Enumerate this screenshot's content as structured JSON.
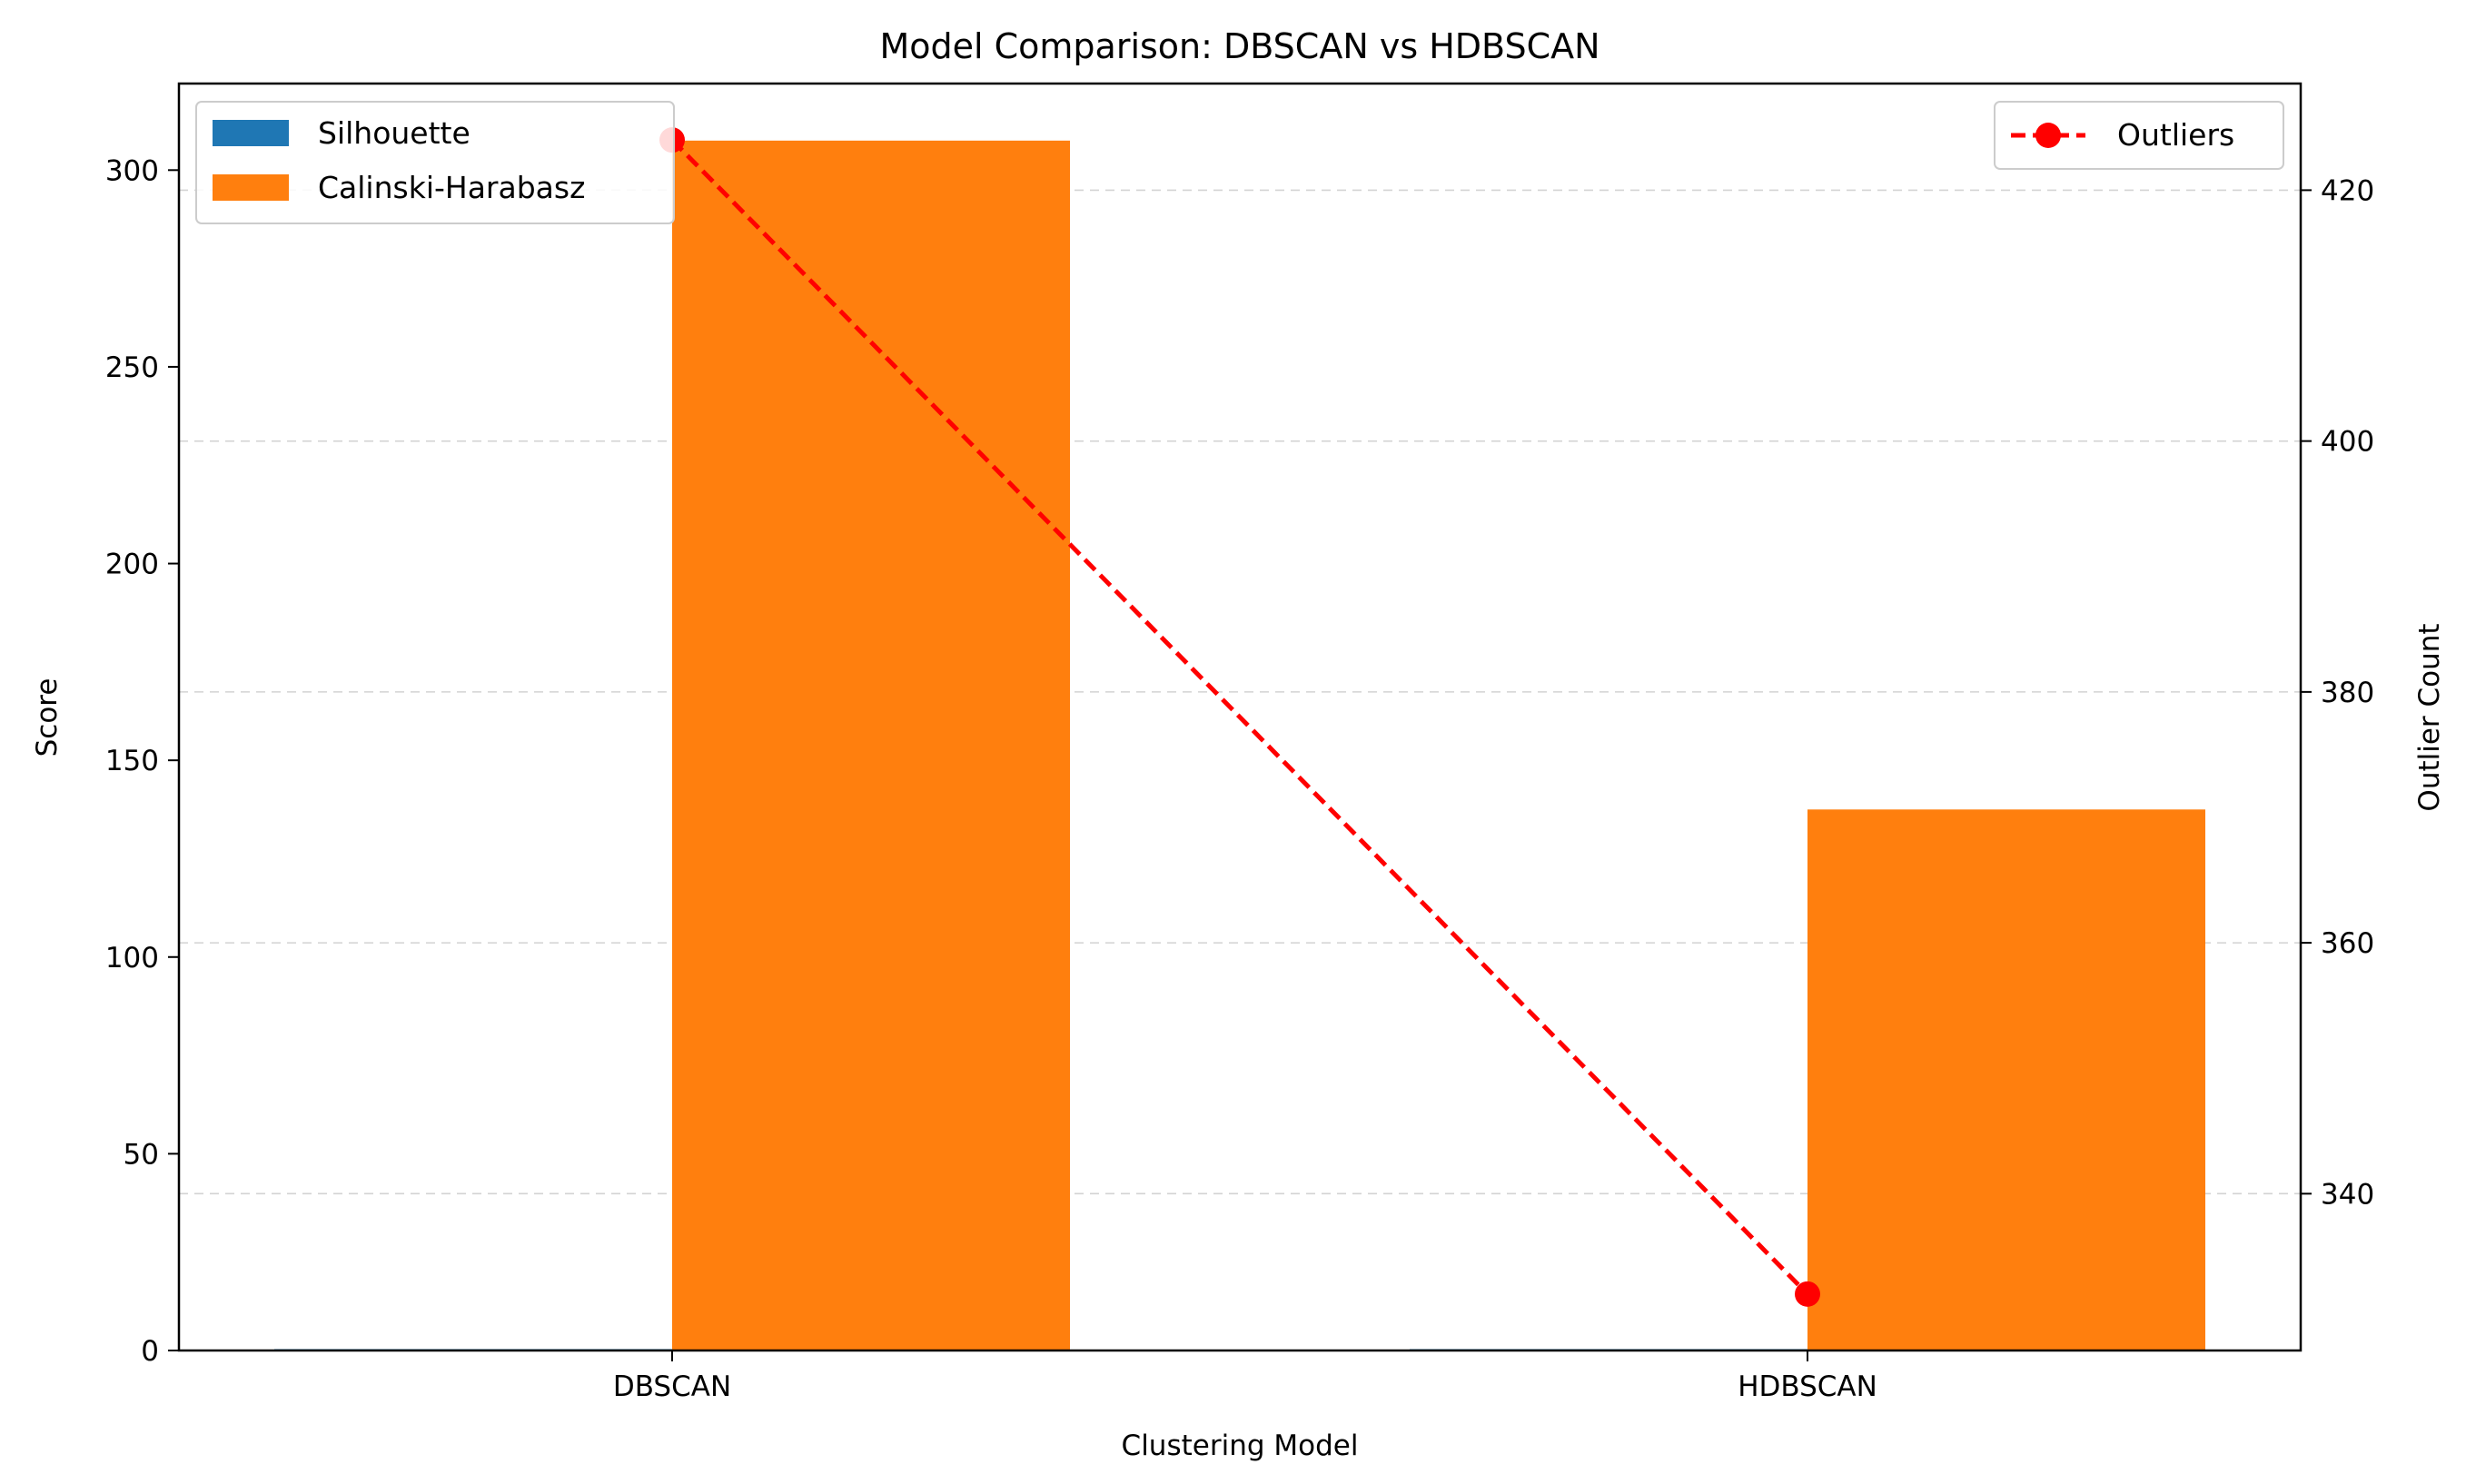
{
  "chart_data": {
    "type": "bar",
    "title": "Model Comparison: DBSCAN vs HDBSCAN",
    "xlabel": "Clustering Model",
    "ylabel": "Score",
    "y2label": "Outlier Count",
    "categories": [
      "DBSCAN",
      "HDBSCAN"
    ],
    "ylim": [
      0,
      322
    ],
    "yticks": [
      0,
      50,
      100,
      150,
      200,
      250,
      300
    ],
    "y2lim": [
      327.5,
      428.5
    ],
    "y2ticks": [
      340,
      360,
      380,
      400,
      420
    ],
    "grid": "y2-dashed",
    "series": [
      {
        "name": "Silhouette",
        "axis": "left",
        "kind": "bar",
        "color": "#1f77b4",
        "values": [
          0.3,
          0.1
        ]
      },
      {
        "name": "Calinski-Harabasz",
        "axis": "left",
        "kind": "bar",
        "color": "#ff7f0e",
        "values": [
          307.5,
          137.5
        ]
      },
      {
        "name": "Outliers",
        "axis": "right",
        "kind": "line",
        "style": "dashed",
        "marker": "circle",
        "color": "#ff0000",
        "values": [
          424,
          332
        ]
      }
    ],
    "legend_left": "upper-left",
    "legend_right": "upper-right"
  }
}
